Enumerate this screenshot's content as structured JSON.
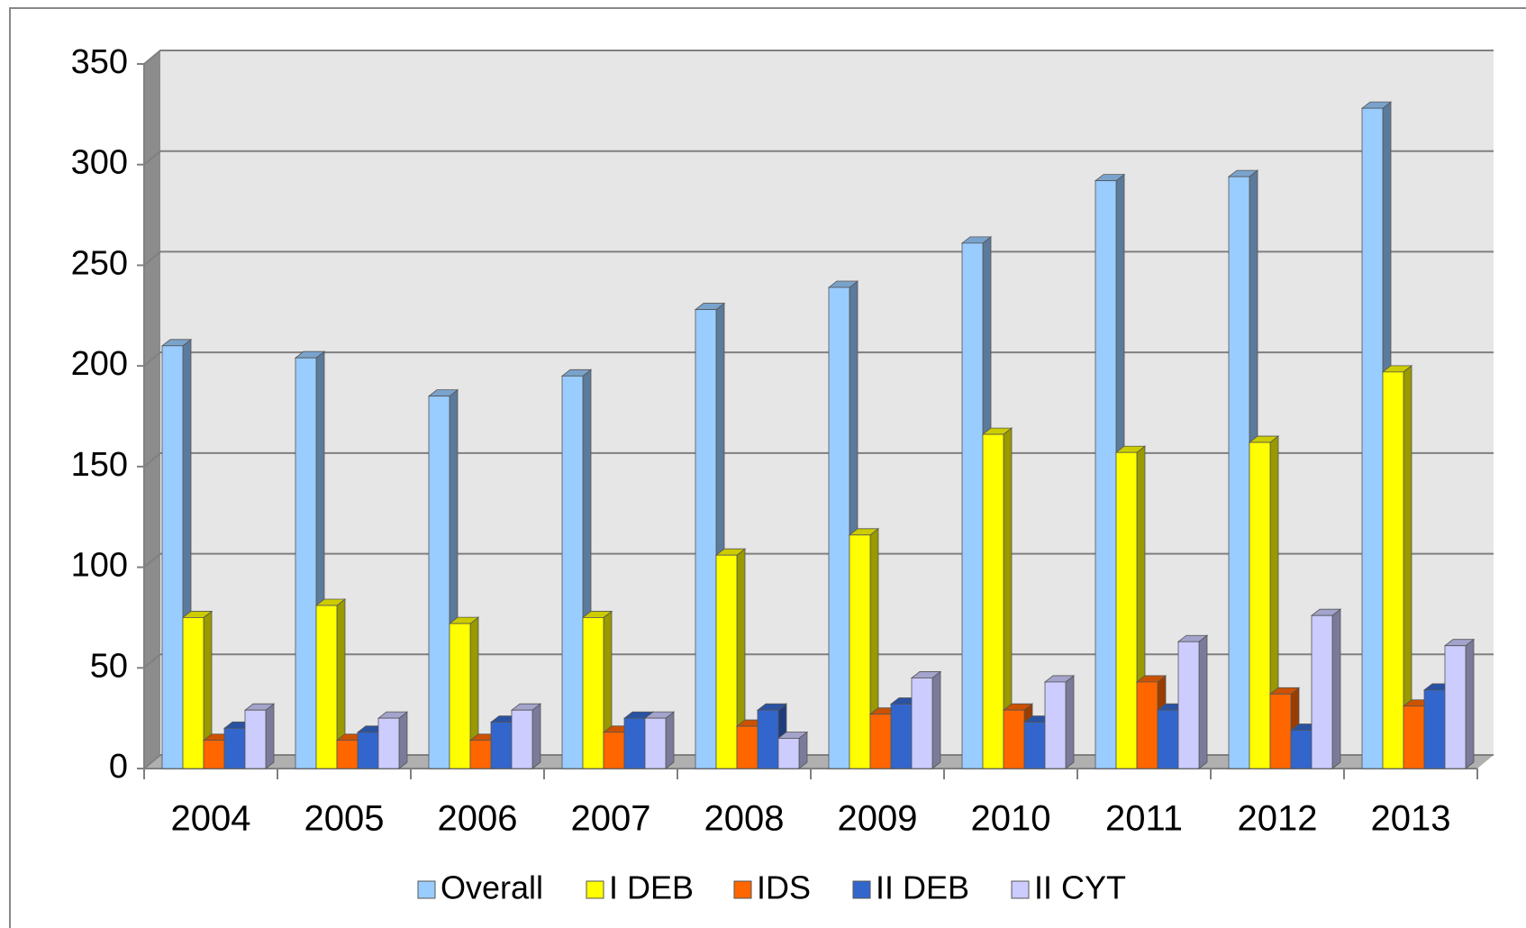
{
  "chart_data": {
    "type": "bar",
    "categories": [
      "2004",
      "2005",
      "2006",
      "2007",
      "2008",
      "2009",
      "2010",
      "2011",
      "2012",
      "2013"
    ],
    "series": [
      {
        "name": "Overall",
        "color": "#99ccff",
        "values": [
          210,
          204,
          185,
          195,
          228,
          239,
          261,
          292,
          294,
          328
        ]
      },
      {
        "name": "I DEB",
        "color": "#ffff00",
        "values": [
          75,
          81,
          72,
          75,
          106,
          116,
          166,
          157,
          162,
          197
        ]
      },
      {
        "name": "IDS",
        "color": "#ff6600",
        "values": [
          14,
          14,
          14,
          18,
          21,
          27,
          29,
          43,
          37,
          31
        ]
      },
      {
        "name": "II DEB",
        "color": "#3366cc",
        "values": [
          20,
          18,
          23,
          25,
          29,
          32,
          23,
          29,
          19,
          39
        ]
      },
      {
        "name": "II CYT",
        "color": "#ccccff",
        "values": [
          29,
          25,
          29,
          25,
          15,
          45,
          43,
          63,
          76,
          61
        ]
      }
    ],
    "ylim": [
      0,
      350
    ],
    "yticks": [
      0,
      50,
      100,
      150,
      200,
      250,
      300,
      350
    ],
    "grid": true,
    "legend": "bottom"
  }
}
